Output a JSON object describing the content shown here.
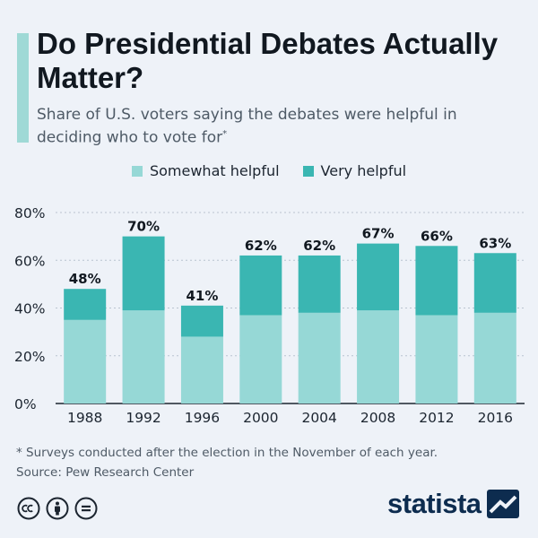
{
  "title": "Do Presidential Debates Actually Matter?",
  "subtitle": "Share of U.S. voters saying the debates were helpful in deciding who to vote for",
  "subtitle_mark": "*",
  "footnote": "* Surveys conducted after the election in the November of each year.",
  "source": "Source: Pew Research Center",
  "brand": "statista",
  "colors": {
    "somewhat": "#96d8d6",
    "very": "#3ab6b2",
    "title_bar": "#9fd9d6",
    "brand": "#0d2c4f"
  },
  "icons": [
    "creative-commons-icon",
    "attribution-icon",
    "no-derivatives-icon",
    "statista-logo-icon"
  ],
  "chart_data": {
    "type": "bar",
    "stacked": true,
    "categories": [
      "1988",
      "1992",
      "1996",
      "2000",
      "2004",
      "2008",
      "2012",
      "2016"
    ],
    "series": [
      {
        "name": "Somewhat helpful",
        "values": [
          35,
          39,
          28,
          37,
          38,
          39,
          37,
          38
        ]
      },
      {
        "name": "Very helpful",
        "values": [
          13,
          31,
          13,
          25,
          24,
          28,
          29,
          25
        ]
      }
    ],
    "totals": [
      "48%",
      "70%",
      "41%",
      "62%",
      "62%",
      "67%",
      "66%",
      "63%"
    ],
    "yticks": [
      "0%",
      "20%",
      "40%",
      "60%",
      "80%"
    ],
    "ylim": [
      0,
      80
    ],
    "grid": true,
    "legend_position": "top-center"
  }
}
